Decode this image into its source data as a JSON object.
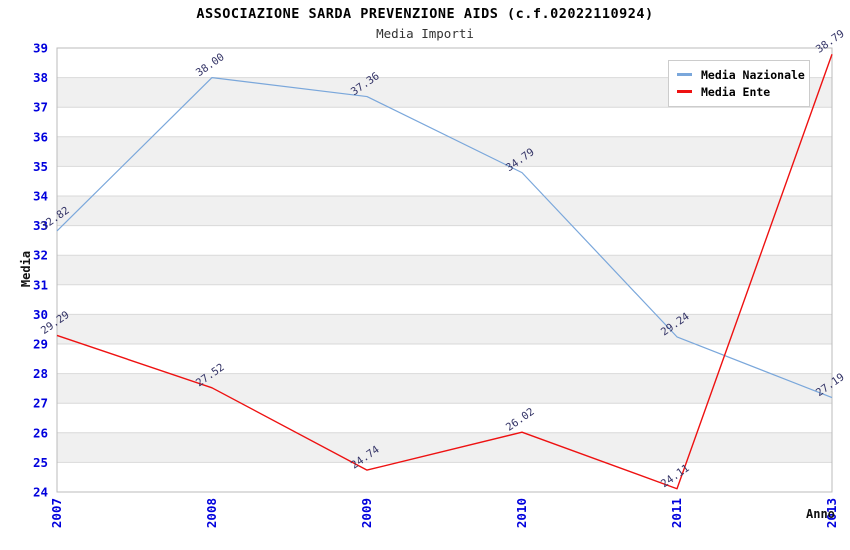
{
  "page_bg": "#ffffff",
  "chart_data": {
    "type": "line",
    "title": "ASSOCIAZIONE SARDA PREVENZIONE AIDS (c.f.02022110924)",
    "subtitle": "Media Importi",
    "xlabel": "Anno",
    "ylabel": "Media",
    "categories": [
      "2007",
      "2008",
      "2009",
      "2010",
      "2011",
      "2013"
    ],
    "series": [
      {
        "name": "Media Nazionale",
        "color": "#7AA7DB",
        "values": [
          32.82,
          38.0,
          37.36,
          34.79,
          29.24,
          27.19
        ],
        "labels": [
          "32.82",
          "38.00",
          "37.36",
          "34.79",
          "29.24",
          "27.19"
        ]
      },
      {
        "name": "Media Ente",
        "color": "#EE1111",
        "values": [
          29.29,
          27.52,
          24.74,
          26.02,
          24.11,
          38.79
        ],
        "labels": [
          "29.29",
          "27.52",
          "24.74",
          "26.02",
          "24.11",
          "38.79"
        ]
      }
    ],
    "ylim": [
      24,
      39
    ],
    "ytick_step": 1,
    "grid": true,
    "legend_position": "top-right",
    "band_colors": {
      "even": "#ffffff",
      "odd": "#f0f0f0"
    },
    "gridline_color": "#d9d9d9",
    "plot_border_color": "#bbbbbb",
    "tick_label_color": "#0000DD",
    "data_label_color": "#333366",
    "data_label_angle_deg": -35,
    "x_tick_angle_deg": -90
  }
}
